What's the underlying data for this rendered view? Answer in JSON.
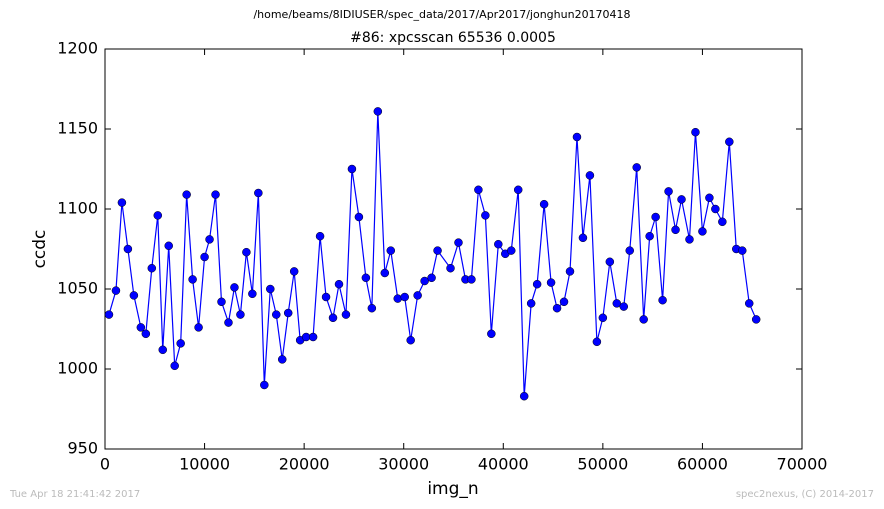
{
  "header": "/home/beams/8IDIUSER/spec_data/2017/Apr2017/jonghun20170418",
  "footer": {
    "left": "Tue Apr 18 21:41:42 2017",
    "right": "spec2nexus, (C) 2014-2017"
  },
  "chart_data": {
    "type": "line",
    "title": "#86: xpcsscan 65536 0.0005",
    "x_label": "img_n",
    "y_label": "ccdc",
    "x": [
      400,
      1100,
      1700,
      2300,
      2900,
      3600,
      4100,
      4700,
      5300,
      5800,
      6400,
      7000,
      7600,
      8200,
      8800,
      9400,
      10000,
      10500,
      11100,
      11700,
      12400,
      13000,
      13600,
      14200,
      14800,
      15400,
      16000,
      16600,
      17200,
      17800,
      18400,
      19000,
      19600,
      20200,
      20900,
      21600,
      22200,
      22900,
      23500,
      24200,
      24800,
      25500,
      26200,
      26800,
      27400,
      28100,
      28700,
      29400,
      30100,
      30700,
      31400,
      32100,
      32800,
      33400,
      34700,
      35500,
      36200,
      36800,
      37500,
      38200,
      38800,
      39500,
      40200,
      40800,
      41500,
      42100,
      42800,
      43400,
      44100,
      44800,
      45400,
      46100,
      46700,
      47400,
      48000,
      48700,
      49400,
      50000,
      50700,
      51400,
      52100,
      52700,
      53400,
      54100,
      54700,
      55300,
      56000,
      56600,
      57300,
      57900,
      58700,
      59300,
      60000,
      60700,
      61300,
      62000,
      62700,
      63400,
      64000,
      64700,
      65400
    ],
    "series": [
      {
        "color": "#0000ff",
        "values": [
          1034,
          1049,
          1104,
          1075,
          1046,
          1026,
          1022,
          1063,
          1096,
          1012,
          1077,
          1002,
          1016,
          1109,
          1056,
          1026,
          1070,
          1081,
          1109,
          1042,
          1029,
          1051,
          1034,
          1073,
          1047,
          1110,
          990,
          1050,
          1034,
          1006,
          1035,
          1061,
          1018,
          1020,
          1020,
          1083,
          1045,
          1032,
          1053,
          1034,
          1125,
          1095,
          1057,
          1038,
          1161,
          1060,
          1074,
          1044,
          1045,
          1018,
          1046,
          1055,
          1057,
          1074,
          1063,
          1079,
          1056,
          1056,
          1112,
          1096,
          1022,
          1078,
          1072,
          1074,
          1112,
          983,
          1041,
          1053,
          1103,
          1054,
          1038,
          1042,
          1061,
          1145,
          1082,
          1121,
          1017,
          1032,
          1067,
          1041,
          1039,
          1074,
          1126,
          1031,
          1083,
          1095,
          1043,
          1111,
          1087,
          1106,
          1081,
          1148,
          1086,
          1107,
          1100,
          1092,
          1142,
          1075,
          1074,
          1041,
          1031
        ]
      }
    ],
    "xlim": [
      0,
      70000
    ],
    "xticks": [
      0,
      10000,
      20000,
      30000,
      40000,
      50000,
      60000,
      70000
    ],
    "ylim": [
      950,
      1200
    ],
    "yticks": [
      950,
      1000,
      1050,
      1100,
      1150,
      1200
    ],
    "grid": false
  }
}
